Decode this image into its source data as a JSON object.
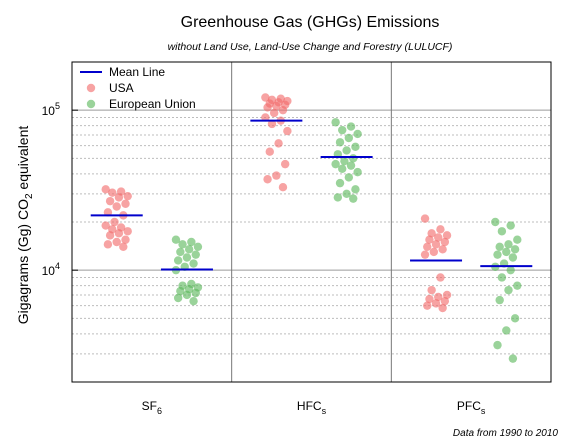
{
  "chart_data": {
    "type": "scatter",
    "title": "Greenhouse Gas (GHGs) Emissions",
    "subtitle": "without Land Use, Land-Use Change and Forestry (LULUCF)",
    "ylabel": "Gigagrams (Gg) CO2 equivalent",
    "ylabel_parts": {
      "main": "Gigagrams (Gg) CO",
      "sub": "2",
      "tail": " equivalent"
    },
    "yscale": "log",
    "ylim": [
      2000,
      200000
    ],
    "yticks": [
      {
        "value": 10000,
        "base": "10",
        "exp": "4"
      },
      {
        "value": 100000,
        "base": "10",
        "exp": "5"
      }
    ],
    "grid": "horizontal, dotted minor",
    "legend_position": "top-left",
    "note": "Data from 1990 to 2010",
    "colors": {
      "usa": "#f26b6b",
      "eu": "#5cb85c",
      "mean": "#0000cc"
    },
    "legend": [
      {
        "label": "Mean Line",
        "kind": "line",
        "color": "#0000cc"
      },
      {
        "label": "USA",
        "kind": "dot",
        "color": "#f26b6b"
      },
      {
        "label": "European Union",
        "kind": "dot",
        "color": "#5cb85c"
      }
    ],
    "categories": [
      {
        "name": "SF6",
        "main": "SF",
        "sub": "6"
      },
      {
        "name": "HFCs",
        "main": "HFC",
        "sub": "s"
      },
      {
        "name": "PFCs",
        "main": "PFC",
        "sub": "s"
      }
    ],
    "series": [
      {
        "name": "USA",
        "color": "#f26b6b",
        "means": [
          22000,
          86000,
          11500
        ],
        "values": [
          [
            32000,
            31000,
            30500,
            29000,
            28500,
            27000,
            26000,
            25000,
            23000,
            22000,
            20000,
            19000,
            18500,
            18000,
            17500,
            17000,
            16500,
            15500,
            15000,
            14500,
            14000
          ],
          [
            120000,
            118000,
            116000,
            114000,
            112000,
            110000,
            108000,
            106000,
            104000,
            100000,
            96000,
            90000,
            86000,
            82000,
            74000,
            62000,
            55000,
            46000,
            39000,
            37000,
            33000
          ],
          [
            21000,
            18000,
            17000,
            16500,
            16000,
            15500,
            15000,
            14500,
            14000,
            13500,
            13000,
            12500,
            9000,
            7500,
            7000,
            6800,
            6600,
            6400,
            6200,
            6000,
            5800
          ]
        ]
      },
      {
        "name": "European Union",
        "color": "#5cb85c",
        "means": [
          10100,
          51000,
          10600
        ],
        "values": [
          [
            15500,
            15000,
            14500,
            14000,
            13500,
            13000,
            12500,
            12000,
            11500,
            11000,
            10500,
            10000,
            8200,
            8000,
            7800,
            7600,
            7400,
            7200,
            7000,
            6700,
            6400
          ],
          [
            84000,
            79000,
            75000,
            71000,
            67000,
            63000,
            59000,
            56000,
            53000,
            50000,
            48000,
            46000,
            45000,
            43000,
            41000,
            38000,
            35000,
            32000,
            30000,
            28500,
            28000
          ],
          [
            20000,
            19000,
            17500,
            15500,
            14500,
            14000,
            13500,
            13000,
            12500,
            12000,
            11000,
            10500,
            10000,
            9000,
            8000,
            7500,
            6500,
            5000,
            4200,
            3400,
            2800
          ]
        ]
      }
    ]
  }
}
